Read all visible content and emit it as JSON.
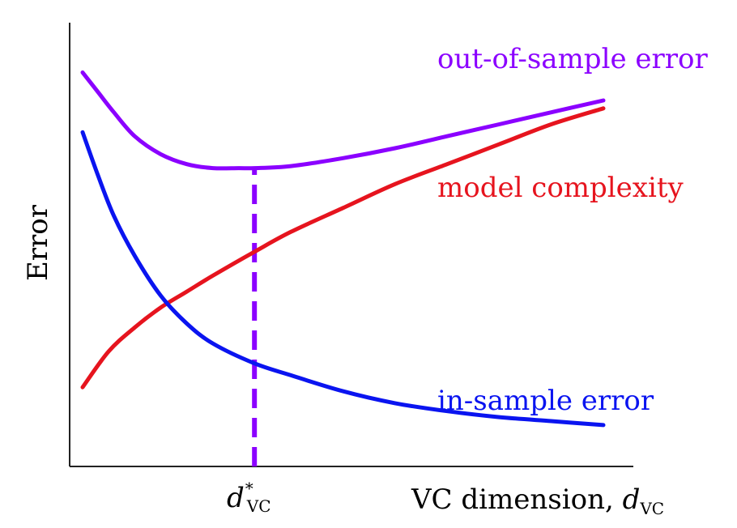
{
  "chart_data": {
    "type": "line",
    "xlabel": "VC dimension, ",
    "xlabel_symbol": {
      "base": "d",
      "sub": "VC"
    },
    "ylabel": "Error",
    "x_marker": {
      "base": "d",
      "sup": "*",
      "sub": "VC",
      "x": 0.33
    },
    "xlim": [
      0,
      1
    ],
    "ylim": [
      0,
      1
    ],
    "grid": false,
    "axes": {
      "ticks": false,
      "frame": "left-bottom"
    },
    "series": [
      {
        "name": "out-of-sample error",
        "color": "#8b00ff",
        "x": [
          0.0,
          0.03,
          0.06,
          0.1,
          0.15,
          0.2,
          0.25,
          0.3,
          0.33,
          0.4,
          0.5,
          0.6,
          0.7,
          0.8,
          0.9,
          1.0
        ],
        "y": [
          0.94,
          0.89,
          0.84,
          0.78,
          0.735,
          0.71,
          0.7,
          0.7,
          0.7,
          0.705,
          0.725,
          0.75,
          0.78,
          0.81,
          0.84,
          0.87
        ]
      },
      {
        "name": "model complexity",
        "color": "#e6141e",
        "x": [
          0.0,
          0.05,
          0.1,
          0.15,
          0.2,
          0.25,
          0.33,
          0.4,
          0.5,
          0.6,
          0.7,
          0.8,
          0.9,
          1.0
        ],
        "y": [
          0.15,
          0.24,
          0.3,
          0.35,
          0.39,
          0.43,
          0.49,
          0.54,
          0.6,
          0.66,
          0.71,
          0.76,
          0.81,
          0.85
        ]
      },
      {
        "name": "in-sample error",
        "color": "#0a14f0",
        "x": [
          0.0,
          0.03,
          0.06,
          0.1,
          0.15,
          0.2,
          0.25,
          0.33,
          0.4,
          0.5,
          0.6,
          0.7,
          0.8,
          0.9,
          1.0
        ],
        "y": [
          0.79,
          0.68,
          0.58,
          0.48,
          0.38,
          0.31,
          0.26,
          0.21,
          0.18,
          0.14,
          0.11,
          0.09,
          0.075,
          0.065,
          0.055
        ]
      }
    ],
    "marker_line": {
      "x": 0.33,
      "from_y": 0,
      "to_y": 0.7,
      "color": "#8b00ff",
      "style": "dashed"
    }
  }
}
